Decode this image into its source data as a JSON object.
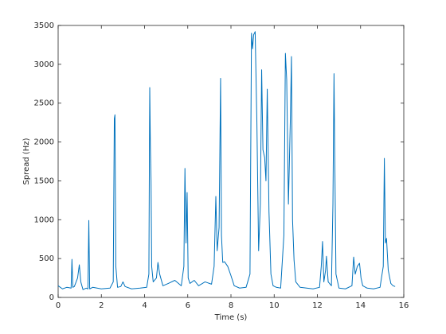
{
  "chart_data": {
    "type": "line",
    "xlabel": "Time (s)",
    "ylabel": "Spread (Hz)",
    "color": "#0072bd",
    "xlim": [
      0,
      16
    ],
    "xticks": [
      0,
      2,
      4,
      6,
      8,
      10,
      12,
      14,
      16
    ],
    "ylim": [
      0,
      3500
    ],
    "yticks": [
      0,
      500,
      1000,
      1500,
      2000,
      2500,
      3000,
      3500
    ],
    "x": [
      0,
      0.2,
      0.4,
      0.6,
      0.64,
      0.68,
      0.75,
      0.9,
      0.98,
      1.05,
      1.15,
      1.3,
      1.38,
      1.42,
      1.46,
      1.6,
      2.0,
      2.4,
      2.55,
      2.6,
      2.63,
      2.67,
      2.75,
      2.9,
      3.0,
      3.1,
      3.4,
      3.8,
      4.1,
      4.2,
      4.24,
      4.27,
      4.3,
      4.33,
      4.4,
      4.55,
      4.62,
      4.7,
      4.85,
      5.1,
      5.4,
      5.7,
      5.82,
      5.87,
      5.92,
      5.97,
      6.02,
      6.1,
      6.3,
      6.5,
      6.8,
      7.1,
      7.22,
      7.3,
      7.36,
      7.45,
      7.52,
      7.56,
      7.62,
      7.7,
      7.85,
      8.0,
      8.15,
      8.4,
      8.7,
      8.88,
      8.95,
      9.0,
      9.05,
      9.12,
      9.2,
      9.28,
      9.36,
      9.42,
      9.48,
      9.56,
      9.62,
      9.68,
      9.76,
      9.85,
      9.95,
      10.1,
      10.3,
      10.45,
      10.52,
      10.58,
      10.66,
      10.75,
      10.8,
      10.85,
      10.92,
      11.0,
      11.2,
      11.5,
      11.8,
      12.1,
      12.18,
      12.24,
      12.3,
      12.38,
      12.42,
      12.5,
      12.65,
      12.72,
      12.77,
      12.8,
      12.86,
      13.0,
      13.3,
      13.6,
      13.68,
      13.75,
      13.85,
      13.95,
      14.02,
      14.1,
      14.3,
      14.6,
      14.9,
      15.05,
      15.1,
      15.15,
      15.2,
      15.28,
      15.4,
      15.5,
      15.6
    ],
    "values": [
      150,
      110,
      130,
      120,
      490,
      130,
      140,
      250,
      420,
      200,
      100,
      120,
      110,
      990,
      110,
      130,
      110,
      120,
      200,
      2300,
      2350,
      400,
      130,
      140,
      200,
      140,
      110,
      120,
      130,
      300,
      2700,
      1950,
      1500,
      400,
      200,
      250,
      450,
      300,
      150,
      180,
      220,
      150,
      400,
      1660,
      700,
      1350,
      250,
      180,
      220,
      150,
      200,
      170,
      400,
      1300,
      600,
      900,
      2820,
      800,
      450,
      460,
      400,
      280,
      150,
      120,
      130,
      300,
      3400,
      3200,
      3380,
      3420,
      2250,
      600,
      1200,
      2930,
      1900,
      1800,
      1500,
      2680,
      1100,
      300,
      150,
      130,
      120,
      800,
      3140,
      2800,
      1200,
      2300,
      3100,
      1000,
      480,
      200,
      130,
      120,
      110,
      130,
      400,
      720,
      200,
      350,
      530,
      200,
      150,
      1200,
      2880,
      1950,
      300,
      120,
      110,
      150,
      520,
      300,
      400,
      440,
      250,
      150,
      120,
      110,
      130,
      400,
      1790,
      700,
      760,
      350,
      180,
      150,
      140
    ]
  }
}
